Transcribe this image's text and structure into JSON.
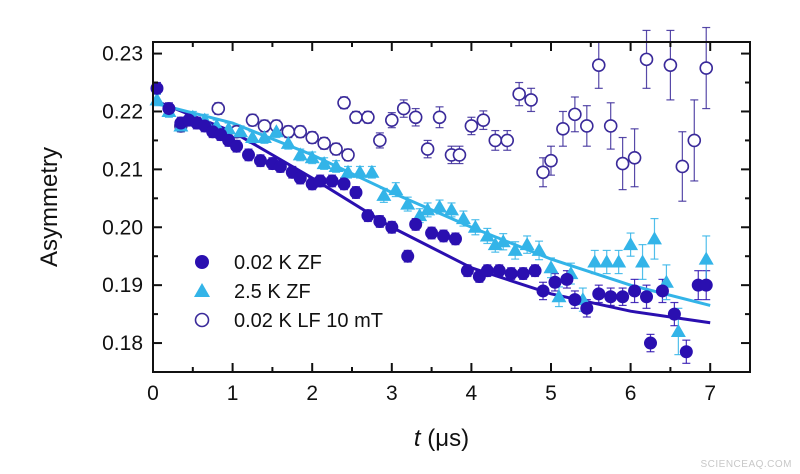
{
  "chart_data": {
    "type": "scatter",
    "xlabel_italic": "t",
    "xlabel_unit": "(μs)",
    "ylabel": "Asymmetry",
    "xlim": [
      0,
      7.5
    ],
    "ylim": [
      0.175,
      0.232
    ],
    "xticks": [
      "0",
      "1",
      "2",
      "3",
      "4",
      "5",
      "6",
      "7"
    ],
    "yticks": [
      "0.18",
      "0.19",
      "0.20",
      "0.21",
      "0.22",
      "0.23"
    ],
    "grid": false,
    "legend_position": "bottom-left",
    "series": [
      {
        "name": "0.02 K ZF",
        "marker": "filled-circle",
        "color": "#2a0fb0",
        "points": [
          [
            0.05,
            0.224,
            0.001
          ],
          [
            0.2,
            0.2205,
            0.001
          ],
          [
            0.35,
            0.218,
            0.001
          ],
          [
            0.45,
            0.2185,
            0.001
          ],
          [
            0.55,
            0.218,
            0.001
          ],
          [
            0.65,
            0.2175,
            0.001
          ],
          [
            0.75,
            0.2165,
            0.001
          ],
          [
            0.85,
            0.216,
            0.001
          ],
          [
            0.95,
            0.215,
            0.001
          ],
          [
            1.05,
            0.214,
            0.001
          ],
          [
            1.2,
            0.2125,
            0.001
          ],
          [
            1.35,
            0.2115,
            0.001
          ],
          [
            1.5,
            0.211,
            0.001
          ],
          [
            1.6,
            0.2105,
            0.001
          ],
          [
            1.75,
            0.2095,
            0.001
          ],
          [
            1.85,
            0.2085,
            0.001
          ],
          [
            2.0,
            0.2075,
            0.001
          ],
          [
            2.1,
            0.208,
            0.001
          ],
          [
            2.25,
            0.208,
            0.001
          ],
          [
            2.4,
            0.2075,
            0.001
          ],
          [
            2.55,
            0.206,
            0.001
          ],
          [
            2.7,
            0.202,
            0.001
          ],
          [
            2.85,
            0.201,
            0.001
          ],
          [
            3.0,
            0.2,
            0.001
          ],
          [
            3.2,
            0.195,
            0.001
          ],
          [
            3.3,
            0.2005,
            0.001
          ],
          [
            3.5,
            0.199,
            0.001
          ],
          [
            3.65,
            0.1985,
            0.001
          ],
          [
            3.8,
            0.198,
            0.001
          ],
          [
            3.95,
            0.1925,
            0.001
          ],
          [
            4.1,
            0.1915,
            0.001
          ],
          [
            4.2,
            0.1925,
            0.001
          ],
          [
            4.35,
            0.1925,
            0.001
          ],
          [
            4.5,
            0.192,
            0.001
          ],
          [
            4.65,
            0.192,
            0.001
          ],
          [
            4.8,
            0.1925,
            0.001
          ],
          [
            4.9,
            0.189,
            0.0015
          ],
          [
            5.05,
            0.1905,
            0.0015
          ],
          [
            5.2,
            0.191,
            0.0015
          ],
          [
            5.3,
            0.1875,
            0.0015
          ],
          [
            5.45,
            0.186,
            0.0015
          ],
          [
            5.6,
            0.1885,
            0.0015
          ],
          [
            5.75,
            0.188,
            0.0015
          ],
          [
            5.9,
            0.188,
            0.0015
          ],
          [
            6.05,
            0.189,
            0.002
          ],
          [
            6.2,
            0.188,
            0.002
          ],
          [
            6.25,
            0.18,
            0.0015
          ],
          [
            6.4,
            0.189,
            0.002
          ],
          [
            6.55,
            0.185,
            0.002
          ],
          [
            6.7,
            0.1785,
            0.002
          ],
          [
            6.85,
            0.19,
            0.0025
          ],
          [
            6.95,
            0.19,
            0.0025
          ]
        ]
      },
      {
        "name": "2.5 K ZF",
        "marker": "filled-triangle",
        "color": "#33b4e8",
        "points": [
          [
            0.05,
            0.222,
            0.001
          ],
          [
            0.2,
            0.22,
            0.001
          ],
          [
            0.35,
            0.2175,
            0.001
          ],
          [
            0.5,
            0.219,
            0.001
          ],
          [
            0.65,
            0.2185,
            0.001
          ],
          [
            0.8,
            0.2175,
            0.001
          ],
          [
            0.95,
            0.217,
            0.001
          ],
          [
            1.1,
            0.2165,
            0.001
          ],
          [
            1.25,
            0.2155,
            0.001
          ],
          [
            1.4,
            0.2155,
            0.001
          ],
          [
            1.55,
            0.2165,
            0.001
          ],
          [
            1.7,
            0.2145,
            0.001
          ],
          [
            1.85,
            0.2125,
            0.001
          ],
          [
            2.0,
            0.212,
            0.001
          ],
          [
            2.15,
            0.211,
            0.001
          ],
          [
            2.3,
            0.2105,
            0.001
          ],
          [
            2.45,
            0.2095,
            0.001
          ],
          [
            2.6,
            0.2095,
            0.001
          ],
          [
            2.75,
            0.2095,
            0.001
          ],
          [
            2.9,
            0.2055,
            0.0012
          ],
          [
            3.05,
            0.2065,
            0.0012
          ],
          [
            3.2,
            0.204,
            0.0012
          ],
          [
            3.35,
            0.202,
            0.0012
          ],
          [
            3.45,
            0.203,
            0.0012
          ],
          [
            3.6,
            0.2035,
            0.0012
          ],
          [
            3.75,
            0.203,
            0.0012
          ],
          [
            3.9,
            0.2015,
            0.0013
          ],
          [
            4.05,
            0.2,
            0.0013
          ],
          [
            4.2,
            0.1985,
            0.0013
          ],
          [
            4.3,
            0.197,
            0.0013
          ],
          [
            4.4,
            0.1975,
            0.0014
          ],
          [
            4.55,
            0.196,
            0.0015
          ],
          [
            4.7,
            0.197,
            0.0015
          ],
          [
            4.85,
            0.196,
            0.0016
          ],
          [
            5.0,
            0.193,
            0.0017
          ],
          [
            5.1,
            0.188,
            0.0017
          ],
          [
            5.25,
            0.192,
            0.0018
          ],
          [
            5.4,
            0.1875,
            0.002
          ],
          [
            5.55,
            0.194,
            0.002
          ],
          [
            5.7,
            0.194,
            0.002
          ],
          [
            5.85,
            0.194,
            0.002
          ],
          [
            6.0,
            0.197,
            0.002
          ],
          [
            6.15,
            0.194,
            0.003
          ],
          [
            6.3,
            0.198,
            0.0035
          ],
          [
            6.45,
            0.1905,
            0.003
          ],
          [
            6.6,
            0.182,
            0.004
          ],
          [
            6.95,
            0.1945,
            0.004
          ]
        ]
      },
      {
        "name": "0.02 K LF 10 mT",
        "marker": "open-circle",
        "color": "#3a2a9a",
        "points": [
          [
            0.35,
            0.2175,
            0.001
          ],
          [
            0.82,
            0.2205,
            0.001
          ],
          [
            1.05,
            0.2165,
            0.001
          ],
          [
            1.25,
            0.2185,
            0.001
          ],
          [
            1.4,
            0.2175,
            0.001
          ],
          [
            1.55,
            0.2175,
            0.001
          ],
          [
            1.7,
            0.2165,
            0.001
          ],
          [
            1.85,
            0.2165,
            0.001
          ],
          [
            2.0,
            0.2155,
            0.001
          ],
          [
            2.15,
            0.2145,
            0.001
          ],
          [
            2.3,
            0.2135,
            0.001
          ],
          [
            2.45,
            0.2125,
            0.001
          ],
          [
            2.4,
            0.2215,
            0.001
          ],
          [
            2.55,
            0.219,
            0.001
          ],
          [
            2.7,
            0.219,
            0.001
          ],
          [
            2.85,
            0.215,
            0.0013
          ],
          [
            3.0,
            0.2185,
            0.0013
          ],
          [
            3.15,
            0.2205,
            0.0015
          ],
          [
            3.3,
            0.219,
            0.0015
          ],
          [
            3.45,
            0.2135,
            0.0015
          ],
          [
            3.6,
            0.219,
            0.0018
          ],
          [
            3.75,
            0.2125,
            0.0015
          ],
          [
            3.85,
            0.2125,
            0.0015
          ],
          [
            4.0,
            0.2175,
            0.0015
          ],
          [
            4.15,
            0.2185,
            0.0016
          ],
          [
            4.3,
            0.215,
            0.0017
          ],
          [
            4.45,
            0.215,
            0.0017
          ],
          [
            4.6,
            0.223,
            0.002
          ],
          [
            4.75,
            0.222,
            0.002
          ],
          [
            4.9,
            0.2095,
            0.0025
          ],
          [
            5.0,
            0.2115,
            0.0025
          ],
          [
            5.15,
            0.217,
            0.003
          ],
          [
            5.3,
            0.2195,
            0.003
          ],
          [
            5.45,
            0.2175,
            0.0035
          ],
          [
            5.6,
            0.228,
            0.004
          ],
          [
            5.75,
            0.2175,
            0.004
          ],
          [
            5.9,
            0.211,
            0.0045
          ],
          [
            6.05,
            0.212,
            0.005
          ],
          [
            6.2,
            0.229,
            0.005
          ],
          [
            6.5,
            0.228,
            0.006
          ],
          [
            6.65,
            0.2105,
            0.006
          ],
          [
            6.8,
            0.215,
            0.007
          ],
          [
            6.95,
            0.2275,
            0.007
          ]
        ]
      }
    ],
    "fits": [
      {
        "series": "0.02 K ZF",
        "color": "#2a0fb0",
        "points": [
          [
            0,
            0.222
          ],
          [
            1,
            0.2165
          ],
          [
            2,
            0.2085
          ],
          [
            3,
            0.2
          ],
          [
            4,
            0.193
          ],
          [
            5,
            0.1885
          ],
          [
            6,
            0.1855
          ],
          [
            7,
            0.1835
          ]
        ]
      },
      {
        "series": "2.5 K ZF",
        "color": "#33b4e8",
        "points": [
          [
            0,
            0.2215
          ],
          [
            1,
            0.218
          ],
          [
            2,
            0.2125
          ],
          [
            3,
            0.206
          ],
          [
            4,
            0.2
          ],
          [
            5,
            0.1945
          ],
          [
            6,
            0.19
          ],
          [
            7,
            0.1865
          ]
        ]
      }
    ]
  },
  "watermark": "SCIENCEAQ.COM"
}
